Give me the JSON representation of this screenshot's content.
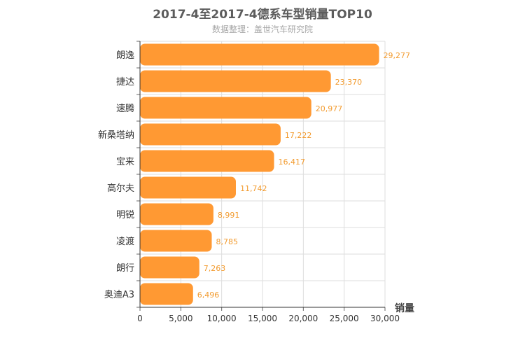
{
  "chart_data": {
    "type": "bar",
    "orientation": "horizontal",
    "title": "2017-4至2017-4德系车型销量TOP10",
    "subtitle": "数据整理：盖世汽车研究院",
    "xlabel": "销量",
    "ylabel": "",
    "xlim": [
      0,
      30000
    ],
    "xticks": [
      "0",
      "5,000",
      "10,000",
      "15,000",
      "20,000",
      "25,000",
      "30,000"
    ],
    "categories": [
      "朗逸",
      "捷达",
      "速腾",
      "新桑塔纳",
      "宝来",
      "高尔夫",
      "明锐",
      "凌渡",
      "朗行",
      "奥迪A3"
    ],
    "values": [
      29277,
      23370,
      20977,
      17222,
      16417,
      11742,
      8991,
      8785,
      7263,
      6496
    ],
    "value_labels": [
      "29,277",
      "23,370",
      "20,977",
      "17,222",
      "16,417",
      "11,742",
      "8,991",
      "8,785",
      "7,263",
      "6,496"
    ],
    "grid": true,
    "bar_color": "#ff9933",
    "label_color": "#f29b2f"
  }
}
